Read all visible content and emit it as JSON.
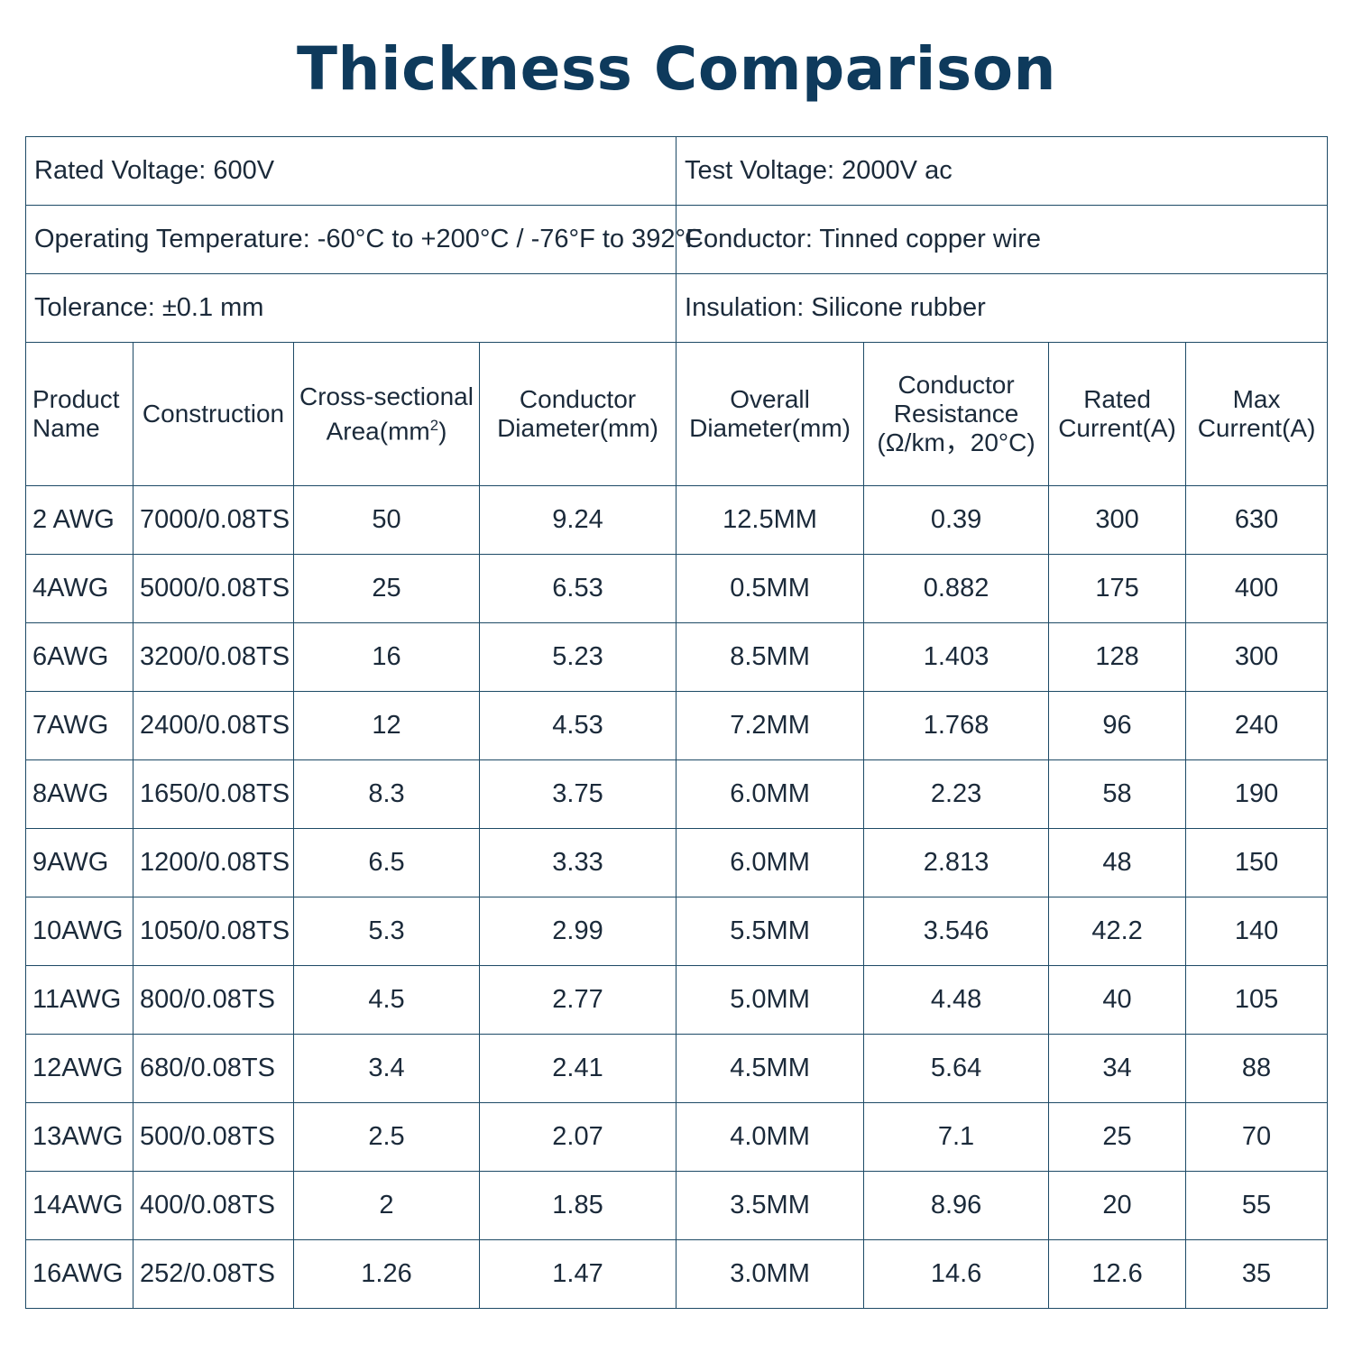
{
  "title": "Thickness Comparison",
  "info": [
    {
      "left": "Rated Voltage:  600V",
      "right": "Test Voltage:  2000V ac"
    },
    {
      "left": "Operating Temperature:  -60°C to +200°C / -76°F to 392°F",
      "right": "Conductor:  Tinned copper wire"
    },
    {
      "left": "Tolerance:  ±0.1 mm",
      "right": "Insulation:  Silicone rubber"
    }
  ],
  "headers": {
    "product_1": "Product",
    "product_2": "Name",
    "construction": "Construction",
    "area_1": "Cross-sectional",
    "area_2": "Area(mm",
    "area_sup": "2",
    "area_3": ")",
    "cond_diam_1": "Conductor",
    "cond_diam_2": "Diameter(mm)",
    "overall_1": "Overall",
    "overall_2": "Diameter(mm)",
    "resist_1": "Conductor",
    "resist_2": "Resistance",
    "resist_3": "(Ω/km，20°C)",
    "rated_1": "Rated",
    "rated_2": "Current(A)",
    "max_1": "Max",
    "max_2": "Current(A)"
  },
  "rows": [
    [
      "2 AWG",
      "7000/0.08TS",
      "50",
      "9.24",
      "12.5MM",
      "0.39",
      "300",
      "630"
    ],
    [
      "4AWG",
      "5000/0.08TS",
      "25",
      "6.53",
      "0.5MM",
      "0.882",
      "175",
      "400"
    ],
    [
      "6AWG",
      "3200/0.08TS",
      "16",
      "5.23",
      "8.5MM",
      "1.403",
      "128",
      "300"
    ],
    [
      "7AWG",
      "2400/0.08TS",
      "12",
      "4.53",
      "7.2MM",
      "1.768",
      "96",
      "240"
    ],
    [
      "8AWG",
      "1650/0.08TS",
      "8.3",
      "3.75",
      "6.0MM",
      "2.23",
      "58",
      "190"
    ],
    [
      "9AWG",
      "1200/0.08TS",
      "6.5",
      "3.33",
      "6.0MM",
      "2.813",
      "48",
      "150"
    ],
    [
      "10AWG",
      "1050/0.08TS",
      "5.3",
      "2.99",
      "5.5MM",
      "3.546",
      "42.2",
      "140"
    ],
    [
      "11AWG",
      "800/0.08TS",
      "4.5",
      "2.77",
      "5.0MM",
      "4.48",
      "40",
      "105"
    ],
    [
      "12AWG",
      "680/0.08TS",
      "3.4",
      "2.41",
      "4.5MM",
      "5.64",
      "34",
      "88"
    ],
    [
      "13AWG",
      "500/0.08TS",
      "2.5",
      "2.07",
      "4.0MM",
      "7.1",
      "25",
      "70"
    ],
    [
      "14AWG",
      "400/0.08TS",
      "2",
      "1.85",
      "3.5MM",
      "8.96",
      "20",
      "55"
    ],
    [
      "16AWG",
      "252/0.08TS",
      "1.26",
      "1.47",
      "3.0MM",
      "14.6",
      "12.6",
      "35"
    ]
  ]
}
